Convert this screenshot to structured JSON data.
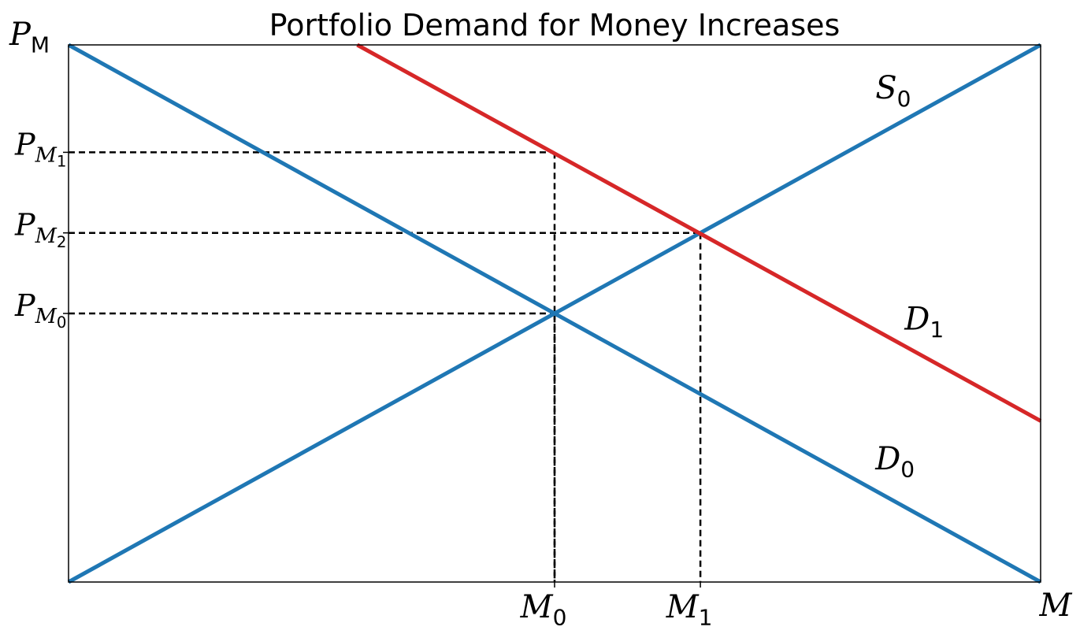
{
  "chart_data": {
    "type": "line",
    "title": "Portfolio Demand for Money Increases",
    "xlabel": {
      "base": "M",
      "sub": ""
    },
    "ylabel": {
      "base": "P",
      "sub": "M"
    },
    "xlim": [
      0,
      10
    ],
    "ylim": [
      0,
      10
    ],
    "grid": false,
    "legend": "none",
    "series": [
      {
        "name": {
          "base": "S",
          "sub": "0"
        },
        "color": "#1f77b4",
        "x": [
          0,
          10
        ],
        "y": [
          0,
          10
        ],
        "label_at": [
          8.3,
          9.0
        ]
      },
      {
        "name": {
          "base": "D",
          "sub": "0"
        },
        "color": "#1f77b4",
        "x": [
          0,
          10
        ],
        "y": [
          10,
          0
        ],
        "label_at": [
          8.3,
          2.1
        ]
      },
      {
        "name": {
          "base": "D",
          "sub": "1"
        },
        "color": "#d62728",
        "x": [
          2.97,
          10
        ],
        "y": [
          10,
          3.0
        ],
        "label_at": [
          8.6,
          4.7
        ]
      }
    ],
    "guides": [
      {
        "x": 5.0,
        "y": 5.0
      },
      {
        "x": 6.5,
        "y": 6.5
      },
      {
        "x": 5.0,
        "y": 8.0
      }
    ],
    "x_ticks": [
      {
        "value": 5.0,
        "label": {
          "base": "M",
          "sub": "0"
        }
      },
      {
        "value": 6.5,
        "label": {
          "base": "M",
          "sub": "1"
        }
      }
    ],
    "y_ticks": [
      {
        "value": 8.0,
        "label": {
          "base": "P",
          "sub": "M",
          "subsub": "1"
        }
      },
      {
        "value": 6.5,
        "label": {
          "base": "P",
          "sub": "M",
          "subsub": "2"
        }
      },
      {
        "value": 5.0,
        "label": {
          "base": "P",
          "sub": "M",
          "subsub": "0"
        }
      }
    ]
  }
}
